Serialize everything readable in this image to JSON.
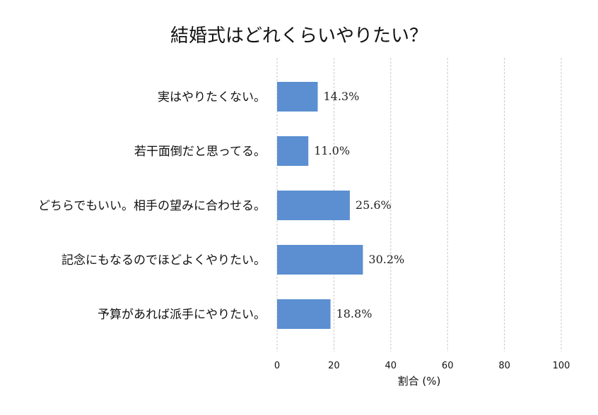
{
  "chart_data": {
    "type": "bar",
    "orientation": "horizontal",
    "title": "結婚式はどれくらいやりたい？",
    "xlabel": "割合 (%)",
    "ylabel": "",
    "xlim": [
      0,
      100
    ],
    "xticks": [
      0,
      20,
      40,
      60,
      80,
      100
    ],
    "grid": "vertical-dashed",
    "bar_color": "#5b8fd1",
    "categories": [
      "実はやりたくない。",
      "若干面倒だと思ってる。",
      "どちらでもいい。相手の望みに合わせる。",
      "記念にもなるのでほどよくやりたい。",
      "予算があれば派手にやりたい。"
    ],
    "values": [
      14.3,
      11.0,
      25.6,
      30.2,
      18.8
    ],
    "value_labels": [
      "14.3%",
      "11.0%",
      "25.6%",
      "30.2%",
      "18.8%"
    ]
  }
}
